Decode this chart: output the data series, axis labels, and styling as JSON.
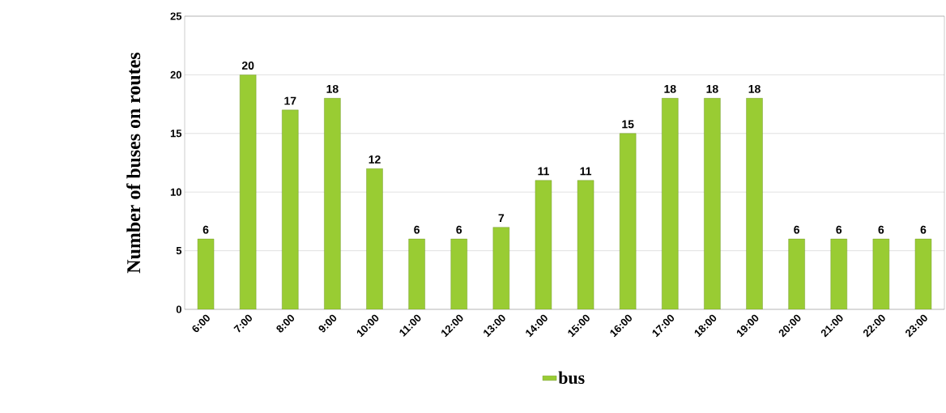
{
  "chart_data": {
    "type": "bar",
    "ylabel": "Number of buses on routes",
    "categories": [
      "6:00",
      "7:00",
      "8:00",
      "9:00",
      "10:00",
      "11:00",
      "12:00",
      "13:00",
      "14:00",
      "15:00",
      "16:00",
      "17:00",
      "18:00",
      "19:00",
      "20:00",
      "21:00",
      "22:00",
      "23:00"
    ],
    "series": [
      {
        "name": "bus",
        "color": "#99cc33",
        "values": [
          6,
          20,
          17,
          18,
          12,
          6,
          6,
          7,
          11,
          11,
          15,
          18,
          18,
          18,
          6,
          6,
          6,
          6
        ]
      }
    ],
    "ylim": [
      0,
      25
    ],
    "yticks": [
      0,
      5,
      10,
      15,
      20,
      25
    ],
    "grid": "y",
    "legend": "bottom",
    "data_labels": true
  }
}
